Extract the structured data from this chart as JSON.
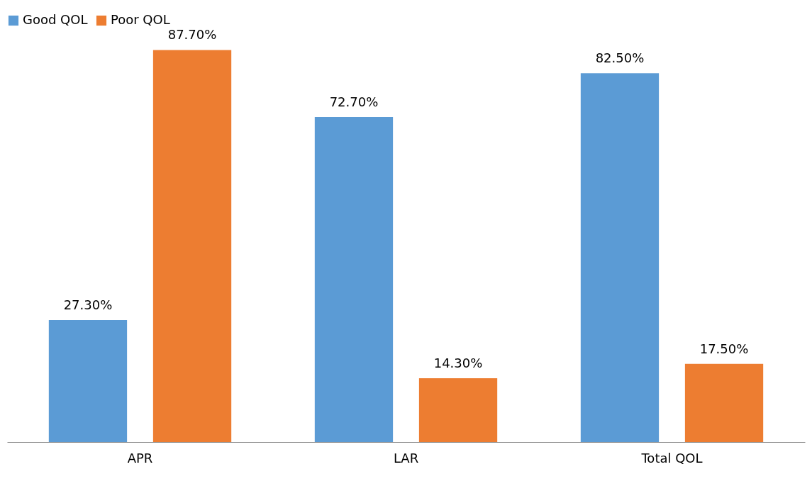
{
  "chart_data": {
    "type": "bar",
    "categories": [
      "APR",
      "LAR",
      "Total QOL"
    ],
    "series": [
      {
        "name": "Good QOL",
        "color": "#5b9bd5",
        "values": [
          27.3,
          72.7,
          82.5
        ],
        "value_labels": [
          "27.30%",
          "72.70%",
          "82.50%"
        ]
      },
      {
        "name": "Poor QOL",
        "color": "#ed7d31",
        "values": [
          87.7,
          14.3,
          17.5
        ],
        "value_labels": [
          "87.70%",
          "14.30%",
          "17.50%"
        ]
      }
    ],
    "legend": "top",
    "grid": false
  }
}
